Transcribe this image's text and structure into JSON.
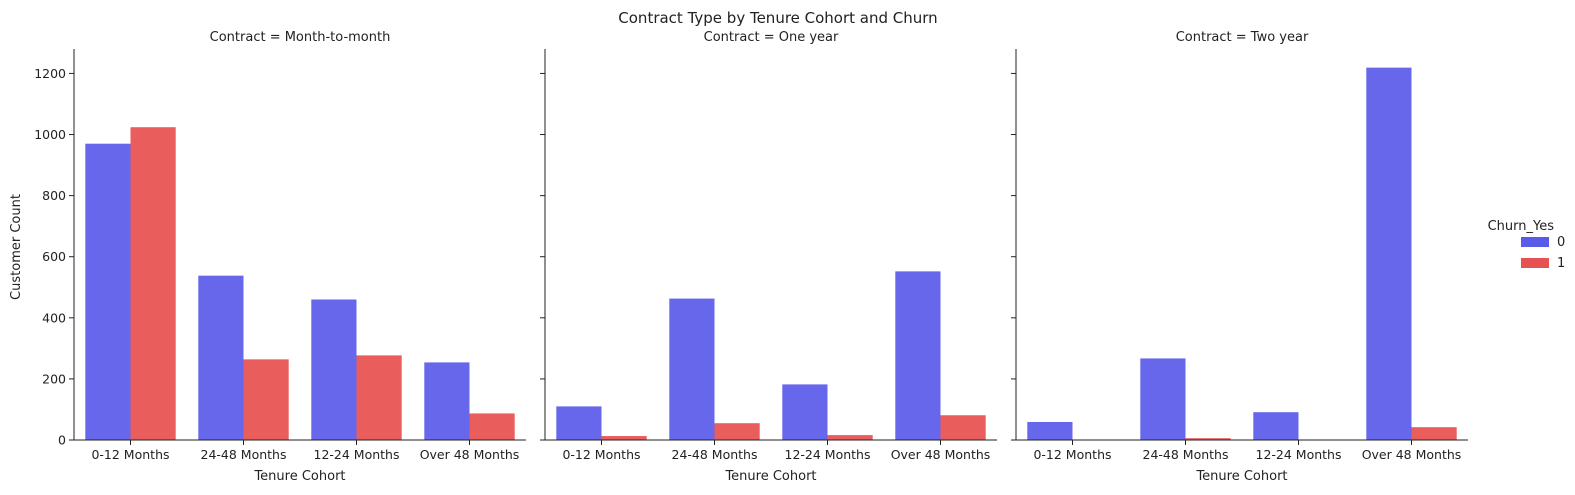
{
  "chart_data": {
    "type": "bar",
    "title": "Contract Type by Tenure Cohort and Churn",
    "xlabel": "Tenure Cohort",
    "ylabel": "Customer Count",
    "categories": [
      "0-12 Months",
      "24-48 Months",
      "12-24 Months",
      "Over 48 Months"
    ],
    "ylim": [
      0,
      1280
    ],
    "yticks": [
      0,
      200,
      400,
      600,
      800,
      1000,
      1200
    ],
    "grid": false,
    "legend": {
      "title": "Churn_Yes",
      "placement": "center-right",
      "entries": [
        {
          "label": "0",
          "color": "#5b5bea"
        },
        {
          "label": "1",
          "color": "#e85151"
        }
      ]
    },
    "facets": [
      {
        "title": "Contract = Month-to-month",
        "series": [
          {
            "name": "0",
            "values": [
              970,
              538,
              460,
              254
            ]
          },
          {
            "name": "1",
            "values": [
              1024,
              264,
              277,
              87
            ]
          }
        ]
      },
      {
        "title": "Contract = One year",
        "series": [
          {
            "name": "0",
            "values": [
              110,
              463,
              182,
              552
            ]
          },
          {
            "name": "1",
            "values": [
              13,
              55,
              16,
              81
            ]
          }
        ]
      },
      {
        "title": "Contract = Two year",
        "series": [
          {
            "name": "0",
            "values": [
              59,
              267,
              91,
              1219
            ]
          },
          {
            "name": "1",
            "values": [
              0,
              6,
              0,
              42
            ]
          }
        ]
      }
    ]
  }
}
